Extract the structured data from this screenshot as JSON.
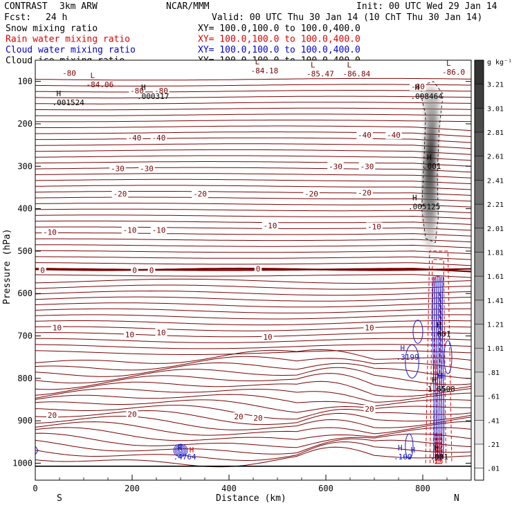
{
  "header": {
    "program": "CONTRAST",
    "model": "3km ARW",
    "center": "NCAR/MMM",
    "init": "Init: 00 UTC Wed 29 Jan 14",
    "fcst_label": "Fcst:",
    "fcst_value": "24 h",
    "valid": "Valid: 00 UTC Thu 30 Jan 14 (10 ChT Thu 30 Jan 14)"
  },
  "fields": [
    {
      "name": "Snow mixing ratio",
      "xy": "XY= 100.0,100.0 to 100.0,400.0",
      "color": "#000000"
    },
    {
      "name": "Rain water mixing ratio",
      "xy": "XY= 100.0,100.0 to 100.0,400.0",
      "color": "#dd0000"
    },
    {
      "name": "Cloud water mixing ratio",
      "xy": "XY= 100.0,100.0 to 100.0,400.0",
      "color": "#0000cc"
    },
    {
      "name": "Cloud ice mixing ratio",
      "xy": "XY= 100.0,100.0 to 100.0,400.0",
      "color": "#000000"
    }
  ],
  "colors": {
    "temperature": "#7a0000",
    "cloud_water": "#1a1acc",
    "rain": "#dd0000",
    "ice": "#000000"
  },
  "chart_data": {
    "type": "cross-section",
    "xlabel": "Distance (km)",
    "ylabel": "Pressure (hPa)",
    "xlim": [
      0,
      900
    ],
    "ylim": [
      1040,
      50
    ],
    "x_ticks": [
      0,
      200,
      400,
      600,
      800
    ],
    "y_ticks": [
      100,
      200,
      300,
      400,
      500,
      600,
      700,
      800,
      900,
      1000
    ],
    "left_end": "S",
    "right_end": "N",
    "surface_pressure": 1007,
    "temperature_contours": [
      {
        "label": "-80",
        "x": 70,
        "p": 80
      },
      {
        "label": "-80",
        "x": 210,
        "p": 122
      },
      {
        "label": "-80",
        "x": 260,
        "p": 122
      },
      {
        "label": "-80",
        "x": 790,
        "p": 112
      },
      {
        "label": "-40",
        "x": 205,
        "p": 233
      },
      {
        "label": "-40",
        "x": 255,
        "p": 233
      },
      {
        "label": "-40",
        "x": 680,
        "p": 226
      },
      {
        "label": "-40",
        "x": 740,
        "p": 226
      },
      {
        "label": "-30",
        "x": 170,
        "p": 305
      },
      {
        "label": "-30",
        "x": 230,
        "p": 305
      },
      {
        "label": "-30",
        "x": 620,
        "p": 300
      },
      {
        "label": "-30",
        "x": 685,
        "p": 300
      },
      {
        "label": "-20",
        "x": 175,
        "p": 365
      },
      {
        "label": "-20",
        "x": 340,
        "p": 365
      },
      {
        "label": "-20",
        "x": 570,
        "p": 365
      },
      {
        "label": "-20",
        "x": 680,
        "p": 362
      },
      {
        "label": "-10",
        "x": 30,
        "p": 455
      },
      {
        "label": "-10",
        "x": 195,
        "p": 450
      },
      {
        "label": "-10",
        "x": 255,
        "p": 450
      },
      {
        "label": "-10",
        "x": 485,
        "p": 440
      },
      {
        "label": "-10",
        "x": 700,
        "p": 442
      },
      {
        "label": "0",
        "x": 15,
        "p": 545
      },
      {
        "label": "0",
        "x": 205,
        "p": 545
      },
      {
        "label": "0",
        "x": 240,
        "p": 545
      },
      {
        "label": "0",
        "x": 460,
        "p": 542
      },
      {
        "label": "10",
        "x": 45,
        "p": 680
      },
      {
        "label": "10",
        "x": 195,
        "p": 697
      },
      {
        "label": "10",
        "x": 260,
        "p": 692
      },
      {
        "label": "10",
        "x": 480,
        "p": 702
      },
      {
        "label": "10",
        "x": 690,
        "p": 680
      },
      {
        "label": "20",
        "x": 35,
        "p": 887
      },
      {
        "label": "20",
        "x": 200,
        "p": 884
      },
      {
        "label": "20",
        "x": 420,
        "p": 890
      },
      {
        "label": "20",
        "x": 460,
        "p": 893
      },
      {
        "label": "20",
        "x": 690,
        "p": 872
      }
    ],
    "extrema": [
      {
        "type": "L",
        "value": "-84.06",
        "x": 125,
        "p": 97
      },
      {
        "type": "L",
        "value": "-84.18",
        "x": 465,
        "p": 65
      },
      {
        "type": "L",
        "value": "-85.47",
        "x": 580,
        "p": 72
      },
      {
        "type": "L",
        "value": "-86.84",
        "x": 655,
        "p": 72
      },
      {
        "type": "L",
        "value": "-86.0",
        "x": 860,
        "p": 68
      },
      {
        "type": "H",
        "value": ".001524",
        "x": 55,
        "p": 140
      },
      {
        "type": "H",
        "value": ".000317",
        "x": 230,
        "p": 125
      },
      {
        "type": "H",
        "value": ".008464",
        "x": 795,
        "p": 125
      },
      {
        "type": "H",
        "value": ".001",
        "x": 820,
        "p": 290
      },
      {
        "type": "H",
        "value": ".005125",
        "x": 790,
        "p": 385
      },
      {
        "type": "H",
        "value": ".001",
        "x": 840,
        "p": 685
      },
      {
        "type": "H",
        "value": ".3199",
        "x": 765,
        "p": 740
      },
      {
        "type": "H",
        "value": "1.6508",
        "x": 830,
        "p": 815
      },
      {
        "type": "H",
        "value": ".001",
        "x": 835,
        "p": 975
      },
      {
        "type": "H",
        "value": ".169",
        "x": 760,
        "p": 975
      },
      {
        "type": "H",
        "value": ".4764",
        "x": 305,
        "p": 975
      }
    ],
    "extra_markers": [
      "H",
      "H",
      "H",
      "H"
    ],
    "colorbar": {
      "unit": "g kg⁻¹",
      "ticks": [
        "3.21",
        "3.01",
        "2.81",
        "2.61",
        "2.41",
        "2.21",
        "2.01",
        "1.81",
        "1.61",
        "1.41",
        "1.21",
        "1.01",
        ".81",
        ".61",
        ".41",
        ".21",
        ".01"
      ]
    }
  }
}
